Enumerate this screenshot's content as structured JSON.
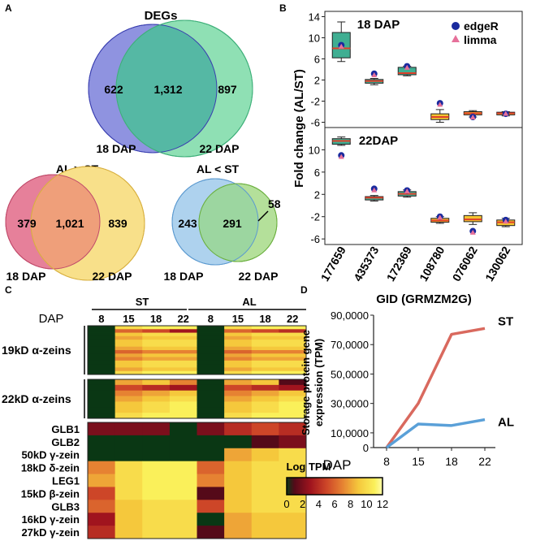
{
  "panel_labels": {
    "a": "A",
    "b": "B",
    "c": "C",
    "d": "D"
  },
  "panel_a": {
    "degs": {
      "title": "DEGs",
      "left": "622",
      "both": "1,312",
      "right": "897",
      "left_label": "18 DAP",
      "right_label": "22 DAP",
      "colors": {
        "left": "#8f93e0",
        "right": "#8fe0b4",
        "overlap": "#55b8a4"
      }
    },
    "al_gt_st": {
      "title": "AL > ST",
      "left": "379",
      "both": "1,021",
      "right": "839",
      "left_label": "18 DAP",
      "right_label": "22 DAP",
      "colors": {
        "left": "#e6809a",
        "right": "#f8e08a",
        "overlap": "#ef9f7a"
      }
    },
    "al_lt_st": {
      "title": "AL < ST",
      "left": "243",
      "both": "291",
      "right": "58",
      "left_label": "18 DAP",
      "right_label": "22 DAP",
      "colors": {
        "left": "#aed2ee",
        "right": "#b4e09a",
        "overlap": "#9cd6a0"
      }
    }
  },
  "chart_data": [
    {
      "id": "boxplot_18dap",
      "type": "box",
      "title": "18 DAP",
      "ylabel": "Fold change (AL/ST)",
      "yticks": [
        "14",
        "10",
        "6",
        "2",
        "-2",
        "-6"
      ],
      "ylim": [
        -7,
        15
      ],
      "legend": [
        {
          "name": "edgeR",
          "color": "#1a2a9e",
          "marker": "circle"
        },
        {
          "name": "limma",
          "color": "#e6709a",
          "marker": "triangle"
        }
      ],
      "boxes": [
        {
          "gene": "177659",
          "min": 5.5,
          "q1": 6.2,
          "median": 8.0,
          "q3": 11.0,
          "max": 13.0,
          "edgeR": 8.6,
          "limma": 8.4
        },
        {
          "gene": "435373",
          "min": 1.1,
          "q1": 1.4,
          "median": 1.8,
          "q3": 2.1,
          "max": 2.3,
          "edgeR": 3.2,
          "limma": 3.0
        },
        {
          "gene": "172369",
          "min": 2.8,
          "q1": 3.0,
          "median": 3.3,
          "q3": 4.4,
          "max": 4.6,
          "edgeR": 4.6,
          "limma": 4.4
        },
        {
          "gene": "108780",
          "min": -6.0,
          "q1": -5.5,
          "median": -5.0,
          "q3": -4.4,
          "max": -3.6,
          "edgeR": -2.4,
          "limma": -2.6
        },
        {
          "gene": "076062",
          "min": -5.0,
          "q1": -4.6,
          "median": -4.3,
          "q3": -4.0,
          "max": -3.8,
          "edgeR": -5.0,
          "limma": -5.0
        },
        {
          "gene": "130062",
          "min": -4.8,
          "q1": -4.6,
          "median": -4.3,
          "q3": -4.1,
          "max": -4.0,
          "edgeR": -4.4,
          "limma": -4.3
        }
      ]
    },
    {
      "id": "boxplot_22dap",
      "type": "box",
      "title": "22DAP",
      "ylabel": "Fold change (AL/ST)",
      "yticks": [
        "10",
        "6",
        "2",
        "-2",
        "-6"
      ],
      "ylim": [
        -7,
        14
      ],
      "xlabel": "GID (GRMZM2G)",
      "categories": [
        "177659",
        "435373",
        "172369",
        "108780",
        "076062",
        "130062"
      ],
      "boxes": [
        {
          "gene": "177659",
          "min": 10.8,
          "q1": 11.0,
          "median": 11.6,
          "q3": 12.0,
          "max": 12.3,
          "edgeR": 9.0,
          "limma": 8.8
        },
        {
          "gene": "435373",
          "min": 0.8,
          "q1": 1.0,
          "median": 1.4,
          "q3": 1.6,
          "max": 1.8,
          "edgeR": 3.0,
          "limma": 2.8
        },
        {
          "gene": "172369",
          "min": 1.5,
          "q1": 1.7,
          "median": 2.1,
          "q3": 2.5,
          "max": 2.8,
          "edgeR": 2.7,
          "limma": 2.6
        },
        {
          "gene": "108780",
          "min": -3.2,
          "q1": -3.0,
          "median": -2.7,
          "q3": -2.3,
          "max": -2.0,
          "edgeR": -2.0,
          "limma": -2.1
        },
        {
          "gene": "076062",
          "min": -3.4,
          "q1": -2.9,
          "median": -2.5,
          "q3": -1.8,
          "max": -1.3,
          "edgeR": -4.6,
          "limma": -4.8
        },
        {
          "gene": "130062",
          "min": -3.8,
          "q1": -3.6,
          "median": -3.0,
          "q3": -2.6,
          "max": -2.3,
          "edgeR": -2.6,
          "limma": -2.8
        }
      ]
    },
    {
      "id": "heatmap_log_tpm",
      "type": "heatmap",
      "groups": [
        "ST",
        "AL"
      ],
      "dap_label": "DAP",
      "dap_columns": [
        "8",
        "15",
        "18",
        "22",
        "8",
        "15",
        "18",
        "22"
      ],
      "blocks": [
        {
          "label": "19kD α-zeins",
          "values": [
            [
              0,
              10,
              11,
              11,
              0,
              10,
              11,
              11
            ],
            [
              0,
              6,
              5,
              3,
              0,
              6,
              5,
              4
            ],
            [
              0,
              9,
              10,
              10,
              0,
              9,
              10,
              10
            ],
            [
              0,
              8,
              9,
              9,
              0,
              8,
              9,
              9
            ],
            [
              0,
              9,
              10,
              10,
              0,
              9,
              10,
              10
            ],
            [
              0,
              9,
              10,
              10,
              0,
              9,
              10,
              10
            ],
            [
              0,
              8,
              9,
              9,
              0,
              8,
              9,
              9
            ],
            [
              0,
              6,
              7,
              7,
              0,
              6,
              7,
              7
            ],
            [
              0,
              8,
              9,
              9,
              0,
              8,
              9,
              9
            ],
            [
              0,
              7,
              8,
              8,
              0,
              7,
              8,
              8
            ],
            [
              0,
              9,
              10,
              10,
              0,
              9,
              10,
              10
            ],
            [
              0,
              9,
              10,
              10,
              0,
              9,
              10,
              10
            ],
            [
              0,
              8,
              9,
              9,
              0,
              8,
              9,
              9
            ],
            [
              0,
              10,
              11,
              11,
              0,
              10,
              11,
              11
            ]
          ]
        },
        {
          "label": "22kD α-zeins",
          "values": [
            [
              0,
              8,
              9,
              7,
              0,
              8,
              9,
              1
            ],
            [
              0,
              5,
              4,
              3,
              0,
              5,
              4,
              3
            ],
            [
              0,
              7,
              8,
              9,
              0,
              7,
              8,
              9
            ],
            [
              0,
              8,
              9,
              10,
              0,
              8,
              9,
              10
            ],
            [
              0,
              9,
              10,
              11,
              0,
              9,
              10,
              11
            ],
            [
              0,
              9,
              10,
              11,
              0,
              9,
              10,
              11
            ],
            [
              0,
              10,
              11,
              11,
              0,
              10,
              11,
              11
            ]
          ]
        },
        {
          "label": "",
          "rows": [
            "GLB1",
            "GLB2",
            "50kD γ-zein",
            "18kD δ-zein",
            "LEG1",
            "15kD β-zein",
            "GLB3",
            "16kD γ-zein",
            "27kD γ-zein"
          ],
          "values": [
            [
              2,
              2,
              2,
              0,
              2,
              4,
              5,
              4
            ],
            [
              0,
              0,
              0,
              0,
              0,
              0,
              1,
              2
            ],
            [
              0,
              0,
              0,
              0,
              0,
              8,
              9,
              10
            ],
            [
              7,
              10,
              11,
              11,
              6,
              9,
              10,
              10
            ],
            [
              8,
              10,
              11,
              11,
              7,
              9,
              10,
              10
            ],
            [
              5,
              10,
              11,
              11,
              1,
              9,
              10,
              10
            ],
            [
              6,
              9,
              10,
              10,
              5,
              9,
              10,
              10
            ],
            [
              3,
              9,
              10,
              10,
              0,
              8,
              9,
              9
            ],
            [
              4,
              9,
              10,
              10,
              1,
              8,
              9,
              9
            ]
          ]
        }
      ],
      "scale": {
        "title": "Log TPM",
        "ticks": [
          "0",
          "2",
          "4",
          "6",
          "8",
          "10",
          "12"
        ],
        "range": [
          0,
          12
        ]
      }
    },
    {
      "id": "line_storage_protein",
      "type": "line",
      "ylabel": "Storage protein gene expression (TPM)",
      "xlabel": "DAP",
      "x": [
        "8",
        "15",
        "18",
        "22"
      ],
      "yticks": [
        "90,0000",
        "70,0000",
        "50,0000",
        "30,0000",
        "10,0000",
        "0"
      ],
      "ylim": [
        0,
        90000
      ],
      "series": [
        {
          "name": "ST",
          "color": "#d9695e",
          "values": [
            0,
            30000,
            77000,
            81000
          ]
        },
        {
          "name": "AL",
          "color": "#5aa0d8",
          "values": [
            0,
            16000,
            15000,
            19000
          ]
        }
      ]
    }
  ]
}
